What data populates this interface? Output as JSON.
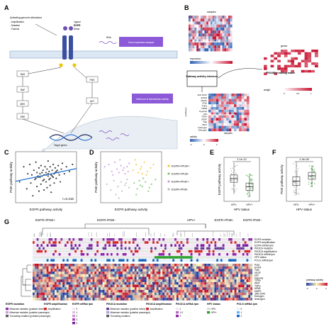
{
  "panels": {
    "a": {
      "letter": "A",
      "alterations_title": "Activating genomic alterations",
      "alterations": [
        "- Amplification",
        "- Mutation",
        "- Fusions"
      ],
      "ligand": "Ligand",
      "receptor": "EGFR",
      "dimer": "Dimer",
      "nodes": [
        "RAS",
        "RAF",
        "MEK",
        "ERK",
        "PI3K",
        "AKT"
      ],
      "rna": "RNA",
      "expression_box": "Gene expression analysis",
      "activity_box": "Inference of downstream activity",
      "target_genes": "Target genes"
    },
    "b": {
      "letter": "B",
      "samples_label": "samples",
      "genes_label": "genes",
      "expression_matrix_label": "Gene expression matrix",
      "expression_legend_title": "expression",
      "progeny_label": "PROGENy training matrix",
      "weight_legend_title": "weight",
      "weight_ticks": [
        "0",
        "0.5",
        "1"
      ],
      "inference_box": "Pathway activity inference",
      "pathways_axis": "pathways",
      "pathway_rows": [
        "JAK-STAT",
        "EGFR",
        "MAPK",
        "PI3K",
        "TNFa",
        "NFkB",
        "Hypoxia",
        "p53",
        "TGFb",
        "VEGF",
        "Trail",
        "WNT",
        "Androgen",
        "Estrogen"
      ],
      "activity_matrix_label": "Pathway activity matrix",
      "activity_legend_title": "activity",
      "activity_ticks": [
        "-2",
        "0",
        "2"
      ]
    },
    "c": {
      "letter": "C",
      "xlabel": "EGFR pathway activity",
      "ylabel": "PI3K pathway activity",
      "annotation": "r=0.216"
    },
    "d": {
      "letter": "D",
      "xlabel": "EGFR pathway activity",
      "ylabel": "PI3K pathway activity",
      "legend": [
        {
          "label": "EGFR+/PI3K+",
          "color": "#f4c542"
        },
        {
          "label": "EGFR+/PI3K-",
          "color": "#7cc96b"
        },
        {
          "label": "EGFR-/PI3K+",
          "color": "#c79be0"
        },
        {
          "label": "EGFR-/PI3K-",
          "color": "#b9b9b9"
        }
      ]
    },
    "e": {
      "letter": "E",
      "ylabel": "EGFR pathway activity",
      "xlabel": "HPV status",
      "categories": [
        "HPV-",
        "HPV+"
      ],
      "pvalue": "1.1e-12"
    },
    "f": {
      "letter": "F",
      "ylabel": "PI3K pathway activity",
      "xlabel": "HPV status",
      "categories": [
        "HPV-",
        "HPV+"
      ],
      "pvalue": "1.3e-05"
    },
    "g": {
      "letter": "G",
      "groups": [
        "EGFR+/PI3K+",
        "EGFR-/PI3K-",
        "HPV+",
        "EGFR+/PI3K-",
        "EGFR-/PI3K-"
      ],
      "annotation_rows": [
        "EGFR mutation",
        "EGFR amplification",
        "EGFR mRNA lpm",
        "PIK3CA mutation",
        "PIK3CA amplification",
        "PIK3CA mRNA lpm",
        "HPV status",
        "POLS mRNA lpm"
      ],
      "pathway_rows": [
        "PI3K",
        "EGFR",
        "Trail",
        "VEGF",
        "p53",
        "Hypoxia",
        "TGFb",
        "WNT",
        "TNFa",
        "NFkB",
        "MAPK",
        "JAK-STAT",
        "Estrogen",
        "Androgen"
      ],
      "activity_legend_title": "pathway activity",
      "activity_ticks": [
        "-3",
        "0",
        "3"
      ],
      "legend_blocks": [
        {
          "title": "EGFR mutation",
          "items": [
            "Missense mutation (putative driver)",
            "Missense mutation (putative passenger)",
            "Truncating mutation (putative passenger)"
          ]
        },
        {
          "title": "EGFR amplification",
          "items": [
            "Amplification"
          ]
        },
        {
          "title": "EGFR mRNA lpm",
          "items": [
            "0",
            "1",
            "2",
            "3",
            "4"
          ]
        },
        {
          "title": "PIK3CA mutation",
          "items": [
            "Missense mutation (putative driver)",
            "Missense mutation (putative passenger)",
            "Truncating mutation"
          ]
        },
        {
          "title": "PIK3CA amplification",
          "items": [
            "Amplification"
          ]
        },
        {
          "title": "PIK3CA mRNA lpm",
          "items": [
            "1",
            "1.5",
            "2"
          ]
        },
        {
          "title": "HPV status",
          "items": [
            "HPV-",
            "HPV+"
          ]
        },
        {
          "title": "POLS mRNA lpm",
          "items": [
            "0",
            "1",
            "2"
          ]
        }
      ]
    }
  },
  "chart_data": [
    {
      "type": "scatter",
      "panel": "C",
      "xlabel": "EGFR pathway activity",
      "ylabel": "PI3K pathway activity",
      "annotation": "r=0.216",
      "series": [
        {
          "color": "#222222",
          "x": [
            -2.6,
            -2.2,
            -1.9,
            -1.8,
            -1.6,
            -1.5,
            -1.4,
            -1.3,
            -1.2,
            -1.1,
            -1.0,
            -0.9,
            -0.9,
            -0.8,
            -0.7,
            -0.7,
            -0.6,
            -0.5,
            -0.5,
            -0.4,
            -0.3,
            -0.3,
            -0.2,
            -0.2,
            -0.1,
            0.0,
            0.0,
            0.1,
            0.1,
            0.2,
            0.2,
            0.3,
            0.3,
            0.4,
            0.4,
            0.5,
            0.5,
            0.6,
            0.7,
            0.7,
            0.8,
            0.9,
            0.9,
            1.0,
            1.1,
            1.2,
            1.3,
            1.4,
            1.5,
            1.6,
            1.8,
            2.0,
            2.3,
            2.6,
            -1.0,
            -0.6,
            -0.2,
            0.2,
            0.6,
            1.0,
            -0.4,
            0.0,
            0.4,
            0.8,
            -0.8,
            1.2
          ],
          "y": [
            -0.4,
            0.9,
            -1.0,
            0.3,
            1.1,
            -0.5,
            0.2,
            -1.6,
            0.6,
            -0.2,
            1.3,
            -0.8,
            0.4,
            0.0,
            -1.2,
            0.8,
            0.3,
            -0.6,
            1.0,
            0.1,
            -0.3,
            0.6,
            -1.1,
            0.2,
            0.9,
            -0.4,
            0.4,
            -0.9,
            0.7,
            0.1,
            1.4,
            -0.2,
            0.5,
            -0.7,
            0.9,
            0.2,
            -1.3,
            0.6,
            0.0,
            1.1,
            -0.5,
            0.4,
            0.8,
            -0.1,
            0.6,
            1.0,
            0.2,
            -0.4,
            0.7,
            1.2,
            0.3,
            0.9,
            0.5,
            1.1,
            -0.1,
            0.0,
            -0.2,
            0.3,
            0.1,
            0.5,
            0.4,
            0.2,
            -0.1,
            0.3,
            0.1,
            0.4
          ]
        }
      ],
      "xlim": [
        -3,
        3
      ],
      "ylim": [
        -2.2,
        2.2
      ]
    },
    {
      "type": "scatter",
      "panel": "D",
      "xlabel": "EGFR pathway activity",
      "ylabel": "PI3K pathway activity",
      "series": [
        {
          "name": "EGFR-/PI3K+",
          "color": "#c79be0",
          "x": [
            -2.6,
            -2.2,
            -1.9,
            -1.6,
            -1.4,
            -1.2,
            -1.0,
            -0.8,
            -0.6,
            -0.4,
            -0.3,
            -0.2,
            -1.8,
            -1.1,
            -0.7
          ],
          "y": [
            0.9,
            1.1,
            0.5,
            1.3,
            0.7,
            0.4,
            1.0,
            0.6,
            0.3,
            0.9,
            0.5,
            1.2,
            0.2,
            1.5,
            0.8
          ]
        },
        {
          "name": "EGFR-/PI3K-",
          "color": "#b9b9b9",
          "x": [
            -2.4,
            -2.0,
            -1.7,
            -1.5,
            -1.3,
            -1.0,
            -0.9,
            -0.6,
            -0.4,
            -0.2,
            -1.2,
            -0.5
          ],
          "y": [
            -0.6,
            -1.1,
            -0.3,
            -1.5,
            -0.8,
            -0.4,
            -1.2,
            -0.7,
            -0.2,
            -0.9,
            -1.8,
            -0.5
          ]
        },
        {
          "name": "EGFR+/PI3K+",
          "color": "#f4c542",
          "x": [
            0.2,
            0.5,
            0.7,
            1.0,
            1.3,
            1.6,
            1.9,
            2.2,
            0.4,
            1.1,
            1.5,
            0.9
          ],
          "y": [
            0.6,
            1.1,
            0.4,
            0.9,
            1.3,
            0.5,
            0.8,
            1.1,
            1.5,
            0.3,
            0.2,
            0.7
          ]
        },
        {
          "name": "EGFR+/PI3K-",
          "color": "#7cc96b",
          "x": [
            0.3,
            0.6,
            0.8,
            1.1,
            1.4,
            1.7,
            2.0,
            2.4,
            0.5,
            1.2,
            1.8,
            0.9
          ],
          "y": [
            -0.5,
            -1.0,
            -0.3,
            -0.8,
            -0.4,
            -1.2,
            -0.6,
            -0.2,
            -1.5,
            -0.1,
            -0.9,
            -0.7
          ]
        }
      ],
      "xlim": [
        -3,
        3
      ],
      "ylim": [
        -2.2,
        2.2
      ]
    },
    {
      "type": "box",
      "panel": "E",
      "ylabel": "EGFR pathway activity",
      "xlabel": "HPV status",
      "categories": [
        "HPV-",
        "HPV+"
      ],
      "series": [
        {
          "name": "HPV-",
          "color": "#9a9a9a",
          "median": 0.1,
          "q1": -0.4,
          "q3": 0.6,
          "min": -2.0,
          "max": 2.2
        },
        {
          "name": "HPV+",
          "color": "#2ca02c",
          "median": -1.0,
          "q1": -1.5,
          "q3": -0.5,
          "min": -2.4,
          "max": 0.8
        }
      ],
      "annotation": "1.1e-12",
      "ylim": [
        -3,
        3
      ]
    },
    {
      "type": "box",
      "panel": "F",
      "ylabel": "PI3K pathway activity",
      "xlabel": "HPV status",
      "categories": [
        "HPV-",
        "HPV+"
      ],
      "series": [
        {
          "name": "HPV-",
          "color": "#9a9a9a",
          "median": -0.2,
          "q1": -0.7,
          "q3": 0.3,
          "min": -1.8,
          "max": 2.0
        },
        {
          "name": "HPV+",
          "color": "#2ca02c",
          "median": 0.4,
          "q1": 0.0,
          "q3": 0.8,
          "min": -0.8,
          "max": 1.6
        }
      ],
      "annotation": "1.3e-05",
      "ylim": [
        -2.5,
        2.5
      ]
    }
  ]
}
